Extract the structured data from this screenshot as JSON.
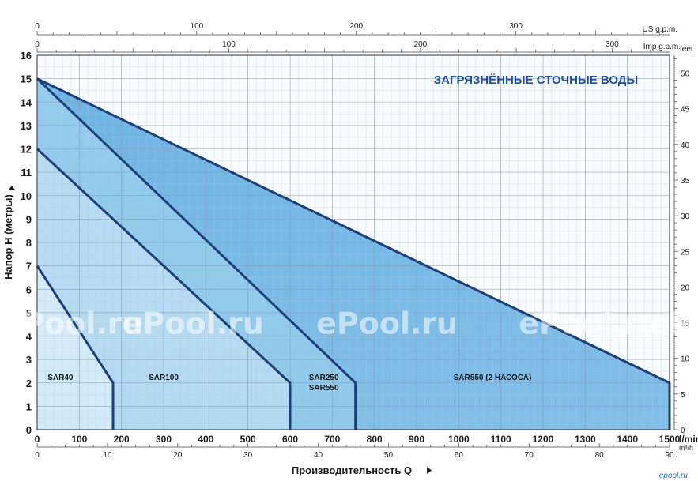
{
  "chart_data": {
    "type": "area",
    "title": "ЗАГРЯЗНЁННЫЕ СТОЧНЫЕ ВОДЫ",
    "xlabel": "Производительность Q",
    "ylabel": "Напор H (метры)",
    "x_unit": "l/min",
    "x_range": [
      0,
      1500
    ],
    "y_range": [
      0,
      16
    ],
    "x_ticks": [
      0,
      100,
      200,
      300,
      400,
      500,
      600,
      700,
      800,
      900,
      1000,
      1100,
      1200,
      1300,
      1400,
      1500
    ],
    "y_ticks": [
      0,
      1,
      2,
      3,
      4,
      5,
      6,
      7,
      8,
      9,
      10,
      11,
      12,
      13,
      14,
      15,
      16
    ],
    "grid": true,
    "secondary_axes": {
      "us_gpm": {
        "label": "US g.p.m.",
        "ticks": [
          0,
          100,
          200,
          300
        ]
      },
      "imp_gpm": {
        "label": "Imp g.p.m.",
        "ticks": [
          0,
          100,
          200,
          300
        ]
      },
      "feet": {
        "label": "feet",
        "ticks": [
          0,
          5,
          10,
          15,
          20,
          25,
          30,
          35,
          40,
          45,
          50
        ]
      },
      "m3h": {
        "label": "m³/h",
        "ticks": [
          0,
          10,
          20,
          30,
          40,
          50,
          60,
          70,
          80,
          90
        ]
      }
    },
    "series": [
      {
        "name": "SAR40",
        "points": [
          [
            0,
            7
          ],
          [
            180,
            2
          ],
          [
            180,
            0
          ]
        ]
      },
      {
        "name": "SAR100",
        "points": [
          [
            0,
            12
          ],
          [
            600,
            2
          ],
          [
            600,
            0
          ]
        ]
      },
      {
        "name": "SAR250\nSAR550",
        "labels": [
          "SAR250",
          "SAR550"
        ],
        "points": [
          [
            0,
            15
          ],
          [
            755,
            2
          ],
          [
            755,
            0
          ]
        ]
      },
      {
        "name": "SAR550 (2 НАСОСА)",
        "points": [
          [
            0,
            15
          ],
          [
            1500,
            2
          ],
          [
            1500,
            0
          ]
        ]
      }
    ],
    "colors": {
      "band4": "#6db4e4",
      "band3": "#94cbed",
      "band2": "#b8dcf3",
      "band1": "#d6ebf8",
      "curve": "#1e3f7a",
      "title": "#1f4e96"
    }
  },
  "watermark": "ePool.ru",
  "logo_text": "epool.ru"
}
